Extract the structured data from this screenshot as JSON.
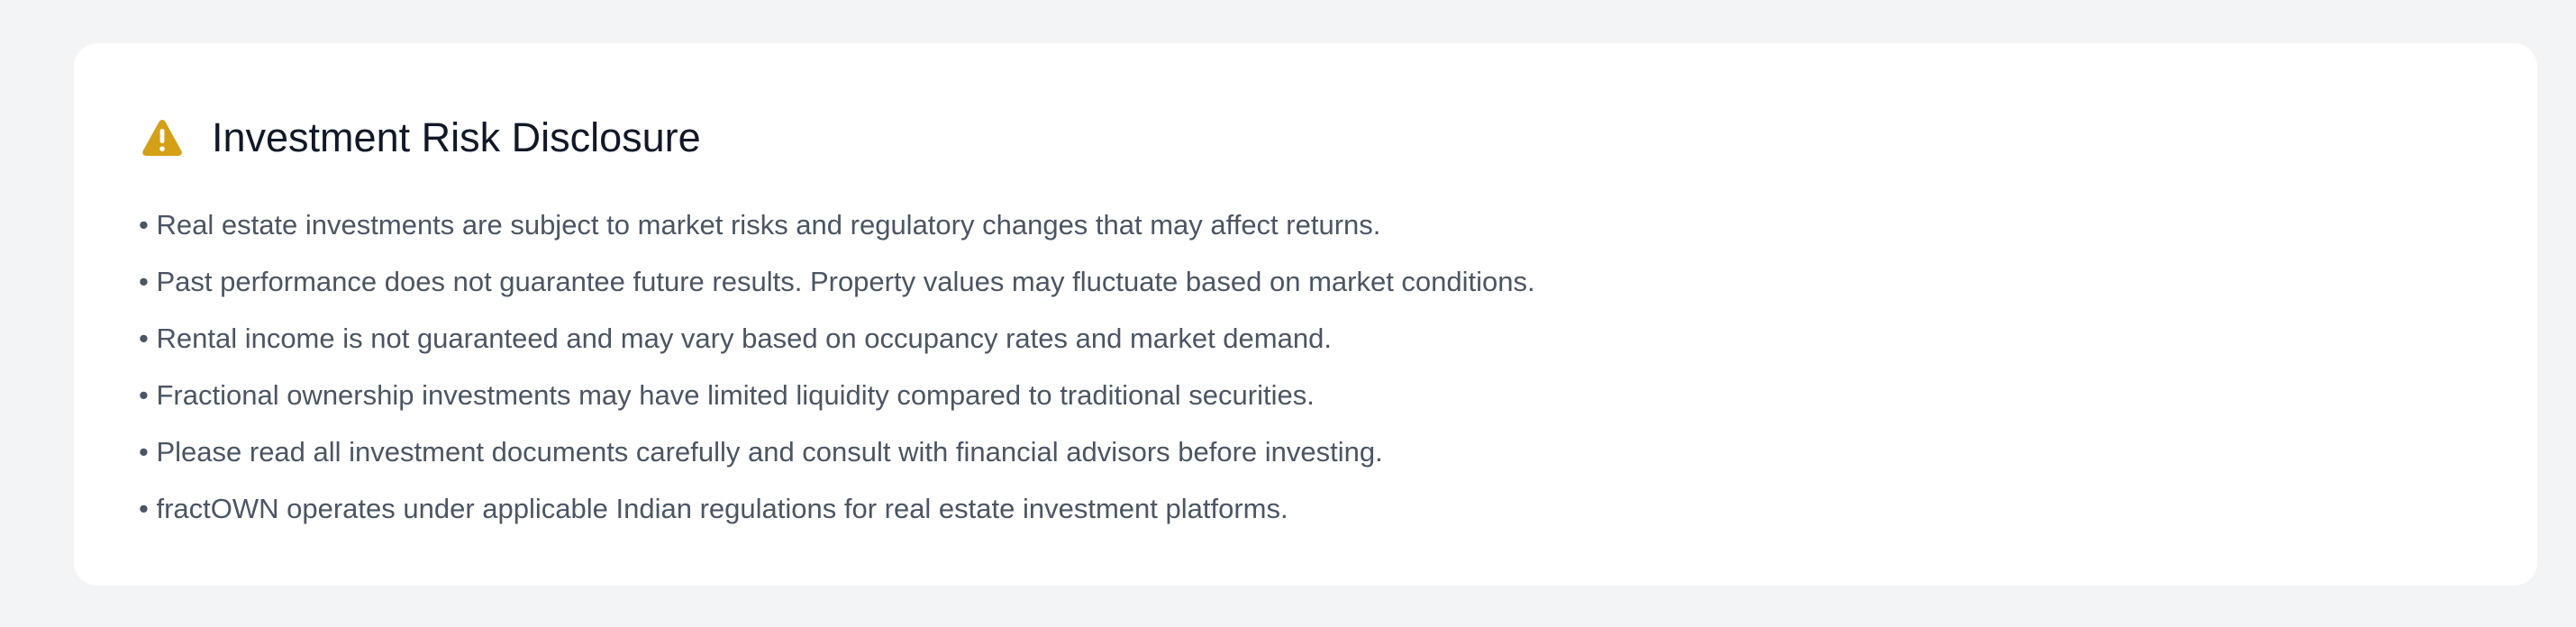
{
  "disclosure": {
    "title": "Investment Risk Disclosure",
    "icon": "warning-triangle-icon",
    "icon_color": "#d4a017",
    "items": [
      "• Real estate investments are subject to market risks and regulatory changes that may affect returns.",
      "• Past performance does not guarantee future results. Property values may fluctuate based on market conditions.",
      "• Rental income is not guaranteed and may vary based on occupancy rates and market demand.",
      "• Fractional ownership investments may have limited liquidity compared to traditional securities.",
      "• Please read all investment documents carefully and consult with financial advisors before investing.",
      "• fractOWN operates under applicable Indian regulations for real estate investment platforms."
    ]
  }
}
